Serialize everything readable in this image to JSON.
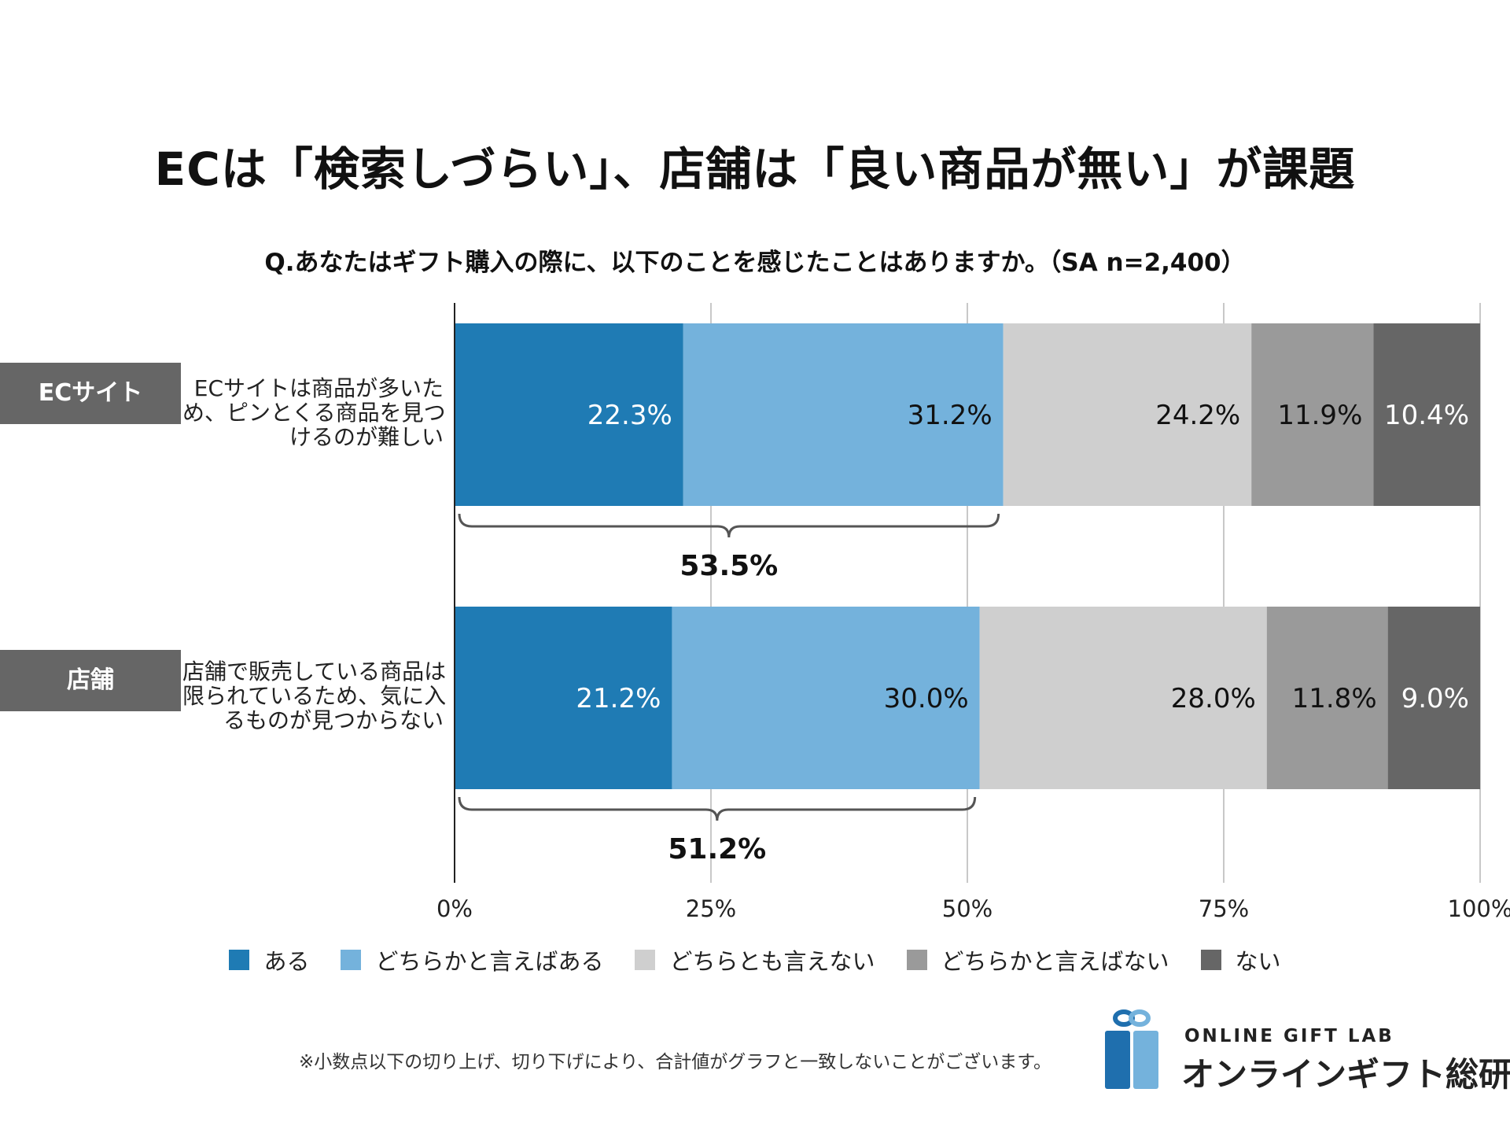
{
  "title": "ECは「検索しづらい」、店舗は「良い商品が無い」が課題",
  "subtitle": "Q.あなたはギフト購入の際に、以下のことを感じたことはありますか。（SA n=2,400）",
  "categories": [
    {
      "tag": "ECサイト",
      "description_lines": [
        "ECサイトは商品が多いた",
        "め、ピンとくる商品を見つ",
        "けるのが難しい"
      ]
    },
    {
      "tag": "店舗",
      "description_lines": [
        "店舗で販売している商品は",
        "限られているため、気に入",
        "るものが見つからない"
      ]
    }
  ],
  "chart_data": {
    "type": "bar",
    "orientation": "horizontal",
    "stacked": true,
    "categories": [
      "ECサイト",
      "店舗"
    ],
    "series": [
      {
        "name": "ある",
        "values": [
          22.3,
          21.2
        ],
        "labels": [
          "22.3%",
          "21.2%"
        ],
        "color": "#1f7bb4",
        "label_color": "#ffffff"
      },
      {
        "name": "どちらかと言えばある",
        "values": [
          31.2,
          30.0
        ],
        "labels": [
          "31.2%",
          "30.0%"
        ],
        "color": "#74b2dc",
        "label_color": "#111111"
      },
      {
        "name": "どちらとも言えない",
        "values": [
          24.2,
          28.0
        ],
        "labels": [
          "24.2%",
          "28.0%"
        ],
        "color": "#cfcfcf",
        "label_color": "#111111"
      },
      {
        "name": "どちらかと言えばない",
        "values": [
          11.9,
          11.8
        ],
        "labels": [
          "11.9%",
          "11.8%"
        ],
        "color": "#9a9a9a",
        "label_color": "#111111"
      },
      {
        "name": "ない",
        "values": [
          10.4,
          9.0
        ],
        "labels": [
          "10.4%",
          "9.0%"
        ],
        "color": "#666666",
        "label_color": "#ffffff"
      }
    ],
    "brace_totals": [
      {
        "value": 53.5,
        "label": "53.5%"
      },
      {
        "value": 51.2,
        "label": "51.2%"
      }
    ],
    "xlim": [
      0,
      100
    ],
    "x_ticks": [
      0,
      25,
      50,
      75,
      100
    ],
    "x_tick_labels": [
      "0%",
      "25%",
      "50%",
      "75%",
      "100%"
    ],
    "grid": true,
    "legend_position": "bottom"
  },
  "footnote": "※小数点以下の切り上げ、切り下げにより、合計値がグラフと一致しないことがございます。",
  "logo": {
    "text_en": "ONLINE GIFT LAB",
    "text_ja": "オンラインギフト総研",
    "color_dark": "#1f6fae",
    "color_light": "#74b2dc"
  }
}
